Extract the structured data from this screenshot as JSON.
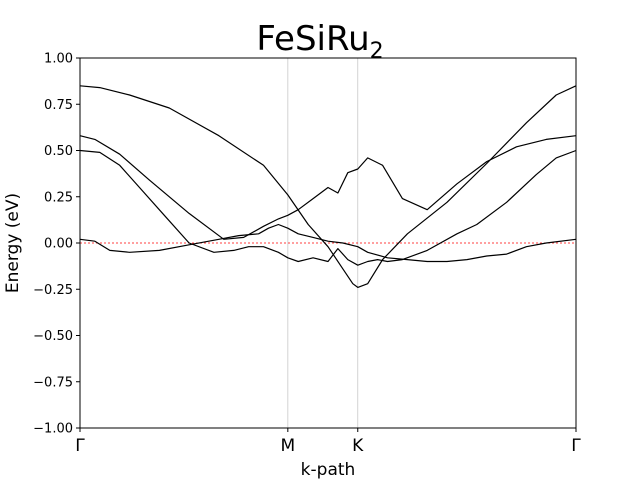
{
  "chart_data": {
    "type": "line",
    "title": "FeSiRu",
    "title_subscript": "2",
    "xlabel": "k-path",
    "ylabel": "Energy (eV)",
    "ylim": [
      -1.0,
      1.0
    ],
    "xlim": [
      0,
      1
    ],
    "yticks": [
      "−1.00",
      "−0.75",
      "−0.50",
      "−0.25",
      "0.00",
      "0.25",
      "0.50",
      "0.75",
      "1.00"
    ],
    "ytick_values": [
      -1.0,
      -0.75,
      -0.5,
      -0.25,
      0.0,
      0.25,
      0.5,
      0.75,
      1.0
    ],
    "kpoints": [
      {
        "label": "Γ",
        "x": 0.0
      },
      {
        "label": "M",
        "x": 0.419
      },
      {
        "label": "K",
        "x": 0.56
      },
      {
        "label": "Γ",
        "x": 1.0
      }
    ],
    "fermi_level": 0.0,
    "grid": "vertical lines at high-symmetry points",
    "colors": {
      "bands": "#000000",
      "fermi": "#ff0000",
      "kline": "#c8c8c8"
    },
    "series": [
      {
        "x": [
          0,
          0.04,
          0.1,
          0.18,
          0.28,
          0.37,
          0.419,
          0.46,
          0.5,
          0.53,
          0.55,
          0.56,
          0.58,
          0.61,
          0.66,
          0.74,
          0.82,
          0.9,
          0.96,
          1.0
        ],
        "values": [
          0.85,
          0.84,
          0.8,
          0.73,
          0.58,
          0.42,
          0.26,
          0.1,
          -0.02,
          -0.14,
          -0.22,
          -0.24,
          -0.22,
          -0.09,
          0.05,
          0.22,
          0.43,
          0.65,
          0.8,
          0.85
        ]
      },
      {
        "x": [
          0,
          0.03,
          0.08,
          0.14,
          0.22,
          0.29,
          0.33,
          0.37,
          0.4,
          0.419,
          0.44,
          0.47,
          0.5,
          0.52,
          0.54,
          0.56,
          0.58,
          0.61,
          0.65,
          0.7,
          0.76,
          0.82,
          0.88,
          0.94,
          1.0
        ],
        "values": [
          0.58,
          0.56,
          0.48,
          0.34,
          0.16,
          0.02,
          0.03,
          0.09,
          0.13,
          0.15,
          0.18,
          0.24,
          0.3,
          0.27,
          0.38,
          0.4,
          0.46,
          0.42,
          0.24,
          0.18,
          0.32,
          0.44,
          0.52,
          0.56,
          0.58
        ]
      },
      {
        "x": [
          0,
          0.04,
          0.08,
          0.12,
          0.17,
          0.22,
          0.27,
          0.31,
          0.34,
          0.37,
          0.4,
          0.419,
          0.44,
          0.47,
          0.5,
          0.52,
          0.54,
          0.56,
          0.58,
          0.6,
          0.62,
          0.65,
          0.7,
          0.76,
          0.8,
          0.86,
          0.92,
          0.96,
          1.0
        ],
        "values": [
          0.5,
          0.49,
          0.42,
          0.3,
          0.15,
          0.0,
          -0.05,
          -0.04,
          -0.02,
          -0.02,
          -0.05,
          -0.08,
          -0.1,
          -0.08,
          -0.1,
          -0.03,
          -0.09,
          -0.12,
          -0.1,
          -0.09,
          -0.1,
          -0.09,
          -0.04,
          0.05,
          0.1,
          0.22,
          0.37,
          0.46,
          0.5
        ]
      },
      {
        "x": [
          0,
          0.03,
          0.06,
          0.1,
          0.16,
          0.22,
          0.28,
          0.32,
          0.36,
          0.38,
          0.4,
          0.419,
          0.44,
          0.47,
          0.5,
          0.53,
          0.56,
          0.58,
          0.62,
          0.66,
          0.7,
          0.74,
          0.78,
          0.82,
          0.86,
          0.9,
          0.94,
          1.0
        ],
        "values": [
          0.02,
          0.01,
          -0.04,
          -0.05,
          -0.04,
          -0.01,
          0.02,
          0.04,
          0.05,
          0.08,
          0.1,
          0.08,
          0.05,
          0.03,
          0.01,
          0.0,
          -0.02,
          -0.05,
          -0.08,
          -0.09,
          -0.1,
          -0.1,
          -0.09,
          -0.07,
          -0.06,
          -0.02,
          0.0,
          0.02
        ]
      }
    ]
  }
}
